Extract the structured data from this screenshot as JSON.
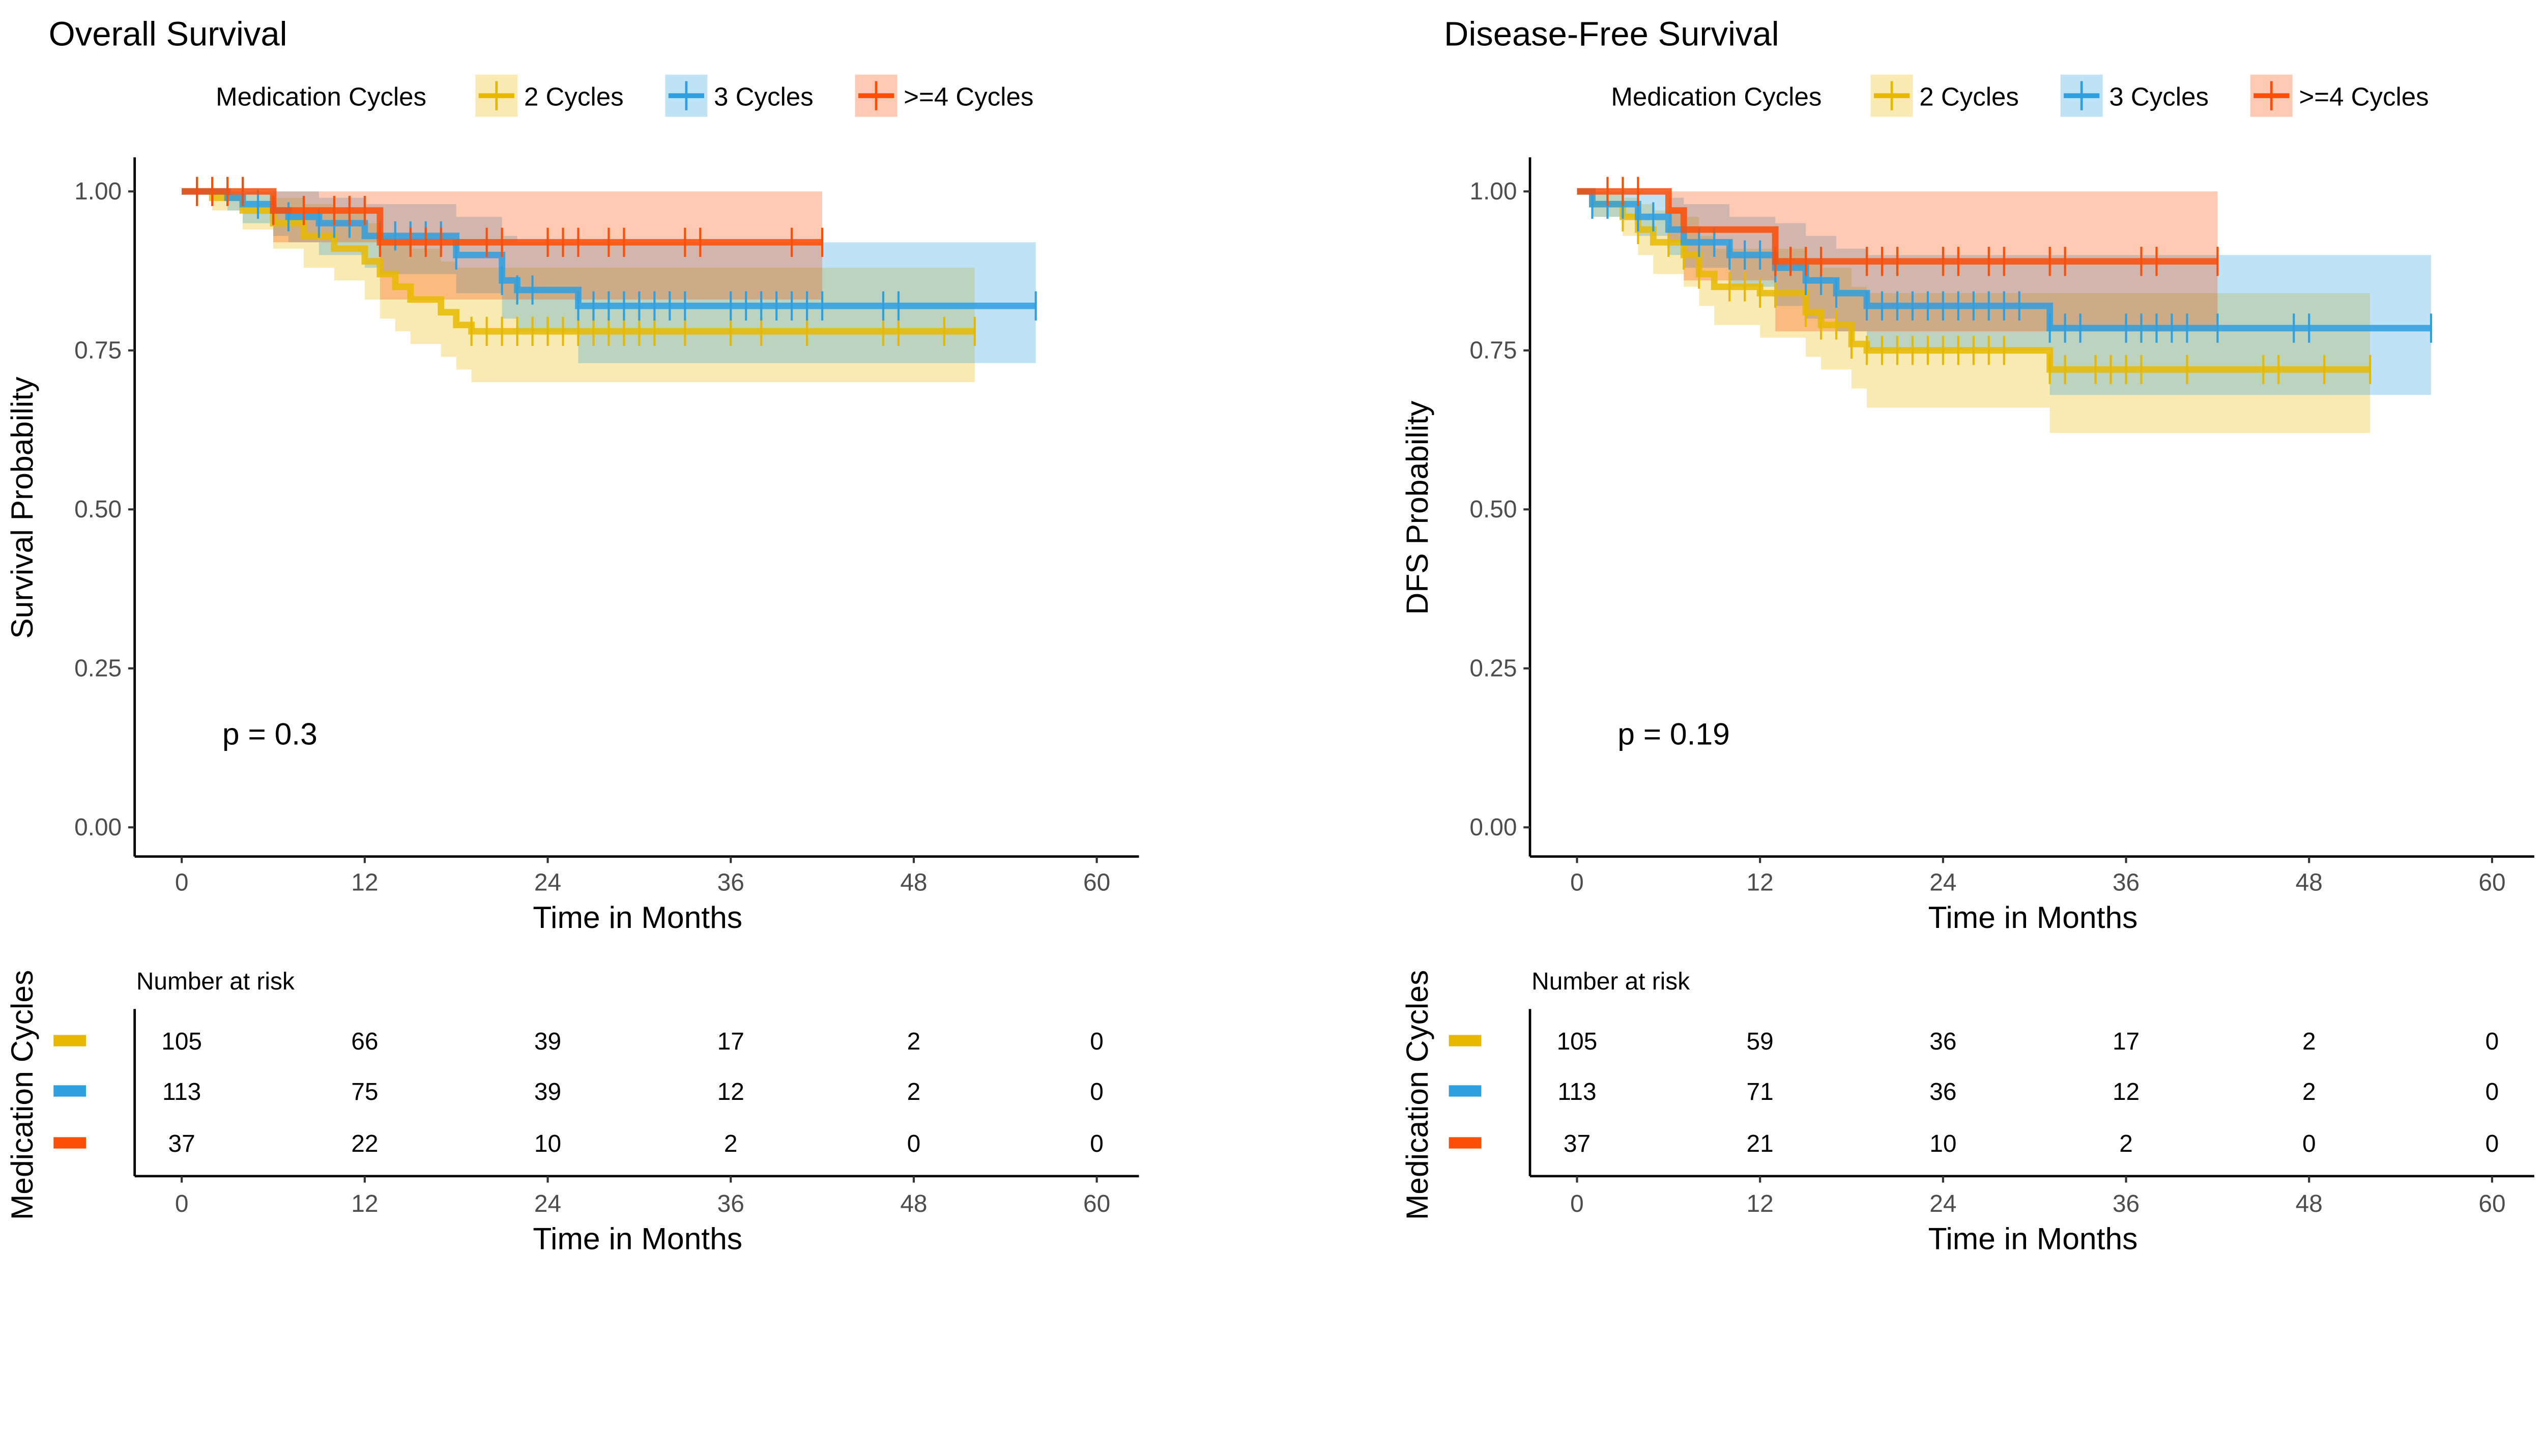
{
  "colors": {
    "2 Cycles": "#E7B800",
    "3 Cycles": "#2E9FDF",
    ">=4 Cycles": "#FC4E07"
  },
  "chart_data": [
    {
      "type": "line",
      "title": "Overall Survival",
      "legend_title": "Medication Cycles",
      "legend_position": "top",
      "xlabel": "Time in Months",
      "ylabel": "Survival Probability",
      "xlim": [
        0,
        60
      ],
      "ylim": [
        0,
        1
      ],
      "x_ticks": [
        "0",
        "12",
        "24",
        "36",
        "48",
        "60"
      ],
      "y_ticks": [
        "0.00",
        "0.25",
        "0.50",
        "0.75",
        "1.00"
      ],
      "grid": false,
      "pvalue": "p = 0.3",
      "series": [
        {
          "name": "2 Cycles",
          "steps": [
            [
              0,
              1,
              1,
              1
            ],
            [
              2,
              0.99,
              0.97,
              1
            ],
            [
              4,
              0.97,
              0.94,
              1
            ],
            [
              6,
              0.95,
              0.91,
              0.99
            ],
            [
              8,
              0.93,
              0.88,
              0.98
            ],
            [
              10,
              0.91,
              0.86,
              0.97
            ],
            [
              12,
              0.89,
              0.83,
              0.95
            ],
            [
              13,
              0.87,
              0.8,
              0.93
            ],
            [
              14,
              0.85,
              0.78,
              0.92
            ],
            [
              15,
              0.83,
              0.76,
              0.91
            ],
            [
              17,
              0.81,
              0.74,
              0.89
            ],
            [
              18,
              0.79,
              0.72,
              0.88
            ],
            [
              19,
              0.78,
              0.7,
              0.88
            ]
          ],
          "end": 52,
          "censor": [
            1,
            19,
            20,
            21,
            22,
            23,
            24,
            25,
            26,
            27,
            28,
            29,
            30,
            31,
            33,
            36,
            38,
            41,
            46,
            47,
            50,
            52
          ]
        },
        {
          "name": "3 Cycles",
          "steps": [
            [
              0,
              1,
              1,
              1
            ],
            [
              3,
              0.99,
              0.97,
              1
            ],
            [
              4,
              0.98,
              0.95,
              1
            ],
            [
              6,
              0.97,
              0.93,
              1
            ],
            [
              7,
              0.96,
              0.92,
              1
            ],
            [
              9,
              0.95,
              0.9,
              0.99
            ],
            [
              12,
              0.93,
              0.88,
              0.98
            ],
            [
              13,
              0.93,
              0.87,
              0.98
            ],
            [
              18,
              0.9,
              0.84,
              0.96
            ],
            [
              21,
              0.86,
              0.8,
              0.93
            ],
            [
              22,
              0.845,
              0.78,
              0.92
            ],
            [
              26,
              0.82,
              0.73,
              0.92
            ]
          ],
          "end": 56,
          "censor": [
            5,
            6,
            7,
            9,
            10,
            11,
            13,
            14,
            15,
            16,
            17,
            18,
            21,
            22,
            23,
            26,
            27,
            28,
            29,
            30,
            31,
            32,
            33,
            36,
            37,
            38,
            39,
            40,
            41,
            42,
            46,
            47,
            56
          ]
        },
        {
          "name": ">=4 Cycles",
          "steps": [
            [
              0,
              1,
              1,
              1
            ],
            [
              6,
              0.97,
              0.92,
              1
            ],
            [
              13,
              0.92,
              0.83,
              1
            ]
          ],
          "end": 42,
          "censor": [
            1,
            2,
            3,
            4,
            6,
            8,
            10,
            11,
            12,
            13,
            15,
            16,
            17,
            20,
            21,
            24,
            25,
            26,
            28,
            29,
            33,
            34,
            40,
            42
          ]
        }
      ],
      "risk_table": {
        "title": "Number at risk",
        "ylabel": "Medication Cycles",
        "xlabel": "Time in Months",
        "times": [
          "0",
          "12",
          "24",
          "36",
          "48",
          "60"
        ],
        "rows": [
          {
            "name": "2 Cycles",
            "values": [
              "105",
              "66",
              "39",
              "17",
              "2",
              "0"
            ]
          },
          {
            "name": "3 Cycles",
            "values": [
              "113",
              "75",
              "39",
              "12",
              "2",
              "0"
            ]
          },
          {
            "name": ">=4 Cycles",
            "values": [
              "37",
              "22",
              "10",
              "2",
              "0",
              "0"
            ]
          }
        ]
      }
    },
    {
      "type": "line",
      "title": "Disease-Free Survival",
      "legend_title": "Medication Cycles",
      "legend_position": "top",
      "xlabel": "Time in Months",
      "ylabel": "DFS Probability",
      "xlim": [
        0,
        60
      ],
      "ylim": [
        0,
        1
      ],
      "x_ticks": [
        "0",
        "12",
        "24",
        "36",
        "48",
        "60"
      ],
      "y_ticks": [
        "0.00",
        "0.25",
        "0.50",
        "0.75",
        "1.00"
      ],
      "grid": false,
      "pvalue": "p = 0.19",
      "series": [
        {
          "name": "2 Cycles",
          "steps": [
            [
              0,
              1,
              1,
              1
            ],
            [
              1,
              0.98,
              0.96,
              1
            ],
            [
              3,
              0.96,
              0.93,
              0.99
            ],
            [
              4,
              0.94,
              0.9,
              0.98
            ],
            [
              5,
              0.92,
              0.87,
              0.97
            ],
            [
              7,
              0.9,
              0.85,
              0.96
            ],
            [
              8,
              0.87,
              0.82,
              0.93
            ],
            [
              9,
              0.85,
              0.79,
              0.91
            ],
            [
              12,
              0.84,
              0.77,
              0.91
            ],
            [
              15,
              0.81,
              0.74,
              0.89
            ],
            [
              16,
              0.79,
              0.72,
              0.88
            ],
            [
              18,
              0.76,
              0.69,
              0.85
            ],
            [
              19,
              0.75,
              0.66,
              0.84
            ],
            [
              31,
              0.72,
              0.62,
              0.84
            ]
          ],
          "end": 52,
          "censor": [
            1,
            2,
            3,
            4,
            6,
            7,
            8,
            10,
            11,
            12,
            13,
            15,
            16,
            17,
            18,
            19,
            20,
            21,
            22,
            23,
            24,
            25,
            26,
            27,
            28,
            31,
            32,
            34,
            35,
            36,
            37,
            40,
            45,
            46,
            49,
            52
          ]
        },
        {
          "name": "3 Cycles",
          "steps": [
            [
              0,
              1,
              1,
              1
            ],
            [
              1,
              0.98,
              0.96,
              1
            ],
            [
              4,
              0.96,
              0.93,
              1
            ],
            [
              6,
              0.94,
              0.9,
              0.99
            ],
            [
              7,
              0.92,
              0.88,
              0.98
            ],
            [
              10,
              0.9,
              0.85,
              0.96
            ],
            [
              13,
              0.88,
              0.82,
              0.95
            ],
            [
              15,
              0.86,
              0.8,
              0.93
            ],
            [
              17,
              0.84,
              0.78,
              0.91
            ],
            [
              19,
              0.82,
              0.75,
              0.9
            ],
            [
              31,
              0.785,
              0.68,
              0.9
            ]
          ],
          "end": 56,
          "censor": [
            1,
            2,
            3,
            4,
            5,
            8,
            9,
            10,
            11,
            12,
            13,
            15,
            16,
            17,
            19,
            20,
            21,
            22,
            23,
            24,
            25,
            26,
            27,
            28,
            29,
            31,
            32,
            33,
            36,
            37,
            38,
            39,
            40,
            42,
            47,
            48,
            56
          ]
        },
        {
          "name": ">=4 Cycles",
          "steps": [
            [
              0,
              1,
              1,
              1
            ],
            [
              6,
              0.97,
              0.92,
              1
            ],
            [
              7,
              0.94,
              0.86,
              1
            ],
            [
              13,
              0.89,
              0.78,
              1
            ]
          ],
          "end": 42,
          "censor": [
            2,
            3,
            4,
            13,
            14,
            15,
            16,
            19,
            20,
            21,
            24,
            25,
            27,
            28,
            31,
            32,
            37,
            38,
            42
          ]
        }
      ],
      "risk_table": {
        "title": "Number at risk",
        "ylabel": "Medication Cycles",
        "xlabel": "Time in Months",
        "times": [
          "0",
          "12",
          "24",
          "36",
          "48",
          "60"
        ],
        "rows": [
          {
            "name": "2 Cycles",
            "values": [
              "105",
              "59",
              "36",
              "17",
              "2",
              "0"
            ]
          },
          {
            "name": "3 Cycles",
            "values": [
              "113",
              "71",
              "36",
              "12",
              "2",
              "0"
            ]
          },
          {
            "name": ">=4 Cycles",
            "values": [
              "37",
              "21",
              "10",
              "2",
              "0",
              "0"
            ]
          }
        ]
      }
    }
  ]
}
